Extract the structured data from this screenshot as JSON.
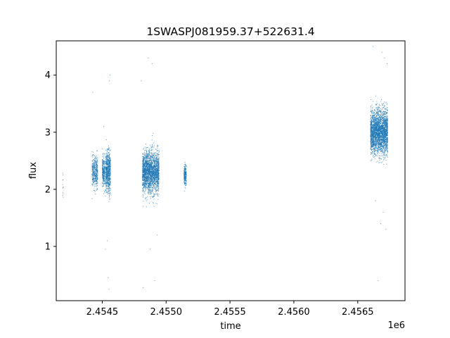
{
  "chart_data": {
    "type": "scatter",
    "title": "1SWASPJ081959.37+522631.4",
    "xlabel": "time",
    "ylabel": "flux",
    "x_offset_text": "1e6",
    "xlim": [
      2454140,
      2456870
    ],
    "ylim": [
      0.05,
      4.6
    ],
    "x_ticks": [
      2454500,
      2455000,
      2455500,
      2456000,
      2456500
    ],
    "x_tick_labels": [
      "2.4545",
      "2.4550",
      "2.4555",
      "2.4560",
      "2.4565"
    ],
    "y_ticks": [
      1,
      2,
      3,
      4
    ],
    "y_tick_labels": [
      "1",
      "2",
      "3",
      "4"
    ],
    "grid": false,
    "point_color": "#1f77b4",
    "clusters": [
      {
        "x_start": 2454190,
        "x_end": 2454195,
        "y_center": 2.1,
        "y_spread": 0.25,
        "count": 12
      },
      {
        "x_start": 2454420,
        "x_end": 2454465,
        "y_center": 2.3,
        "y_spread": 0.22,
        "count": 400
      },
      {
        "x_start": 2454500,
        "x_end": 2454520,
        "y_center": 2.3,
        "y_spread": 0.22,
        "count": 250
      },
      {
        "x_start": 2454525,
        "x_end": 2454565,
        "y_center": 2.3,
        "y_spread": 0.3,
        "count": 700
      },
      {
        "x_start": 2454815,
        "x_end": 2454945,
        "y_center": 2.3,
        "y_spread": 0.3,
        "count": 2200
      },
      {
        "x_start": 2455140,
        "x_end": 2455158,
        "y_center": 2.25,
        "y_spread": 0.15,
        "count": 220
      },
      {
        "x_start": 2456600,
        "x_end": 2456735,
        "y_center": 3.0,
        "y_spread": 0.32,
        "count": 2600
      }
    ],
    "outliers": [
      [
        2454425,
        3.7
      ],
      [
        2454555,
        3.9
      ],
      [
        2454560,
        4.0
      ],
      [
        2454546,
        0.45
      ],
      [
        2454553,
        0.25
      ],
      [
        2454820,
        0.28
      ],
      [
        2454860,
        4.3
      ],
      [
        2454890,
        4.2
      ],
      [
        2454910,
        0.4
      ],
      [
        2454805,
        3.9
      ],
      [
        2454525,
        0.95
      ],
      [
        2454540,
        1.1
      ],
      [
        2456620,
        4.5
      ],
      [
        2456660,
        0.4
      ],
      [
        2456690,
        4.4
      ],
      [
        2456700,
        1.6
      ],
      [
        2456720,
        1.3
      ],
      [
        2456640,
        1.8
      ],
      [
        2456730,
        4.2
      ],
      [
        2454512,
        3.1
      ],
      [
        2454930,
        1.2
      ],
      [
        2454875,
        0.95
      ],
      [
        2456710,
        4.3
      ],
      [
        2456680,
        1.4
      ]
    ]
  }
}
